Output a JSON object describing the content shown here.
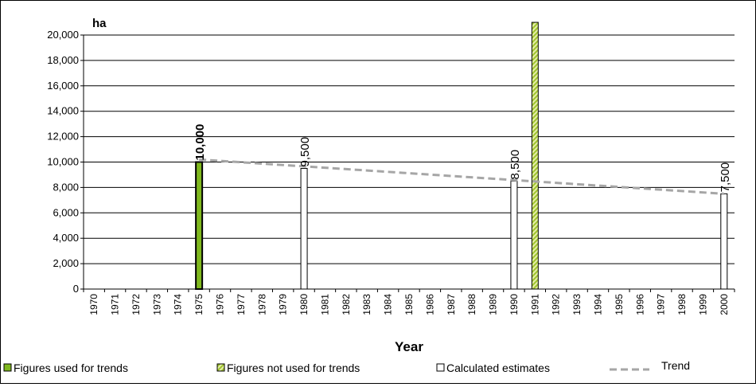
{
  "chart_data": {
    "type": "bar",
    "ylabel": "ha",
    "xlabel": "Year",
    "ylim": [
      0,
      20000
    ],
    "yticks": [
      "0",
      "2,000",
      "4,000",
      "6,000",
      "8,000",
      "10,000",
      "12,000",
      "14,000",
      "16,000",
      "18,000",
      "20,000"
    ],
    "categories": [
      "1970",
      "1971",
      "1972",
      "1973",
      "1974",
      "1975",
      "1976",
      "1977",
      "1978",
      "1979",
      "1980",
      "1981",
      "1982",
      "1983",
      "1984",
      "1985",
      "1986",
      "1987",
      "1988",
      "1989",
      "1990",
      "1991",
      "1992",
      "1993",
      "1994",
      "1995",
      "1996",
      "1997",
      "1998",
      "1999",
      "2000"
    ],
    "grid": true,
    "series": [
      {
        "name": "Figures used for trends",
        "color": "#7fb81e",
        "style": "solid",
        "points": [
          {
            "x": "1975",
            "y": 10000,
            "label": "10,000"
          }
        ]
      },
      {
        "name": "Figures not used for trends",
        "color": "#c7dc63",
        "style": "hatched",
        "points": [
          {
            "x": "1991",
            "y": 21000,
            "label": ""
          }
        ]
      },
      {
        "name": "Calculated estimates",
        "color": "#ffffff",
        "style": "outline",
        "points": [
          {
            "x": "1980",
            "y": 9500,
            "label": "9,500"
          },
          {
            "x": "1990",
            "y": 8500,
            "label": "8,500"
          },
          {
            "x": "2000",
            "y": 7500,
            "label": "7,500"
          }
        ]
      },
      {
        "name": "Trend",
        "type": "line",
        "color": "#a6a6a6",
        "style": "dashed",
        "points": [
          {
            "x": "1975",
            "y": 10200
          },
          {
            "x": "2000",
            "y": 7500
          }
        ]
      }
    ],
    "legend_position": "bottom"
  }
}
